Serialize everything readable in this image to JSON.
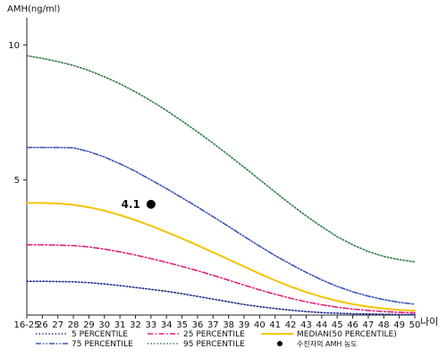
{
  "chart_data": {
    "type": "line",
    "ylabel": "AMH(ng/ml)",
    "xlabel": "나이",
    "categories": [
      "16-25",
      "26",
      "27",
      "28",
      "29",
      "30",
      "31",
      "32",
      "33",
      "34",
      "35",
      "36",
      "37",
      "38",
      "39",
      "40",
      "41",
      "42",
      "43",
      "44",
      "45",
      "46",
      "47",
      "48",
      "49",
      "50"
    ],
    "x": [
      25,
      26,
      27,
      28,
      29,
      30,
      31,
      32,
      33,
      34,
      35,
      36,
      37,
      38,
      39,
      40,
      41,
      42,
      43,
      44,
      45,
      46,
      47,
      48,
      49,
      50
    ],
    "xlim": [
      25,
      50
    ],
    "ylim": [
      0,
      11
    ],
    "yticks": [
      5,
      10
    ],
    "series": [
      {
        "name": "5 PERCENTILE",
        "color": "#1f2a8a",
        "dash": "dotted",
        "values": [
          1.25,
          1.25,
          1.24,
          1.23,
          1.2,
          1.15,
          1.09,
          1.02,
          0.95,
          0.88,
          0.79,
          0.69,
          0.59,
          0.49,
          0.39,
          0.31,
          0.24,
          0.18,
          0.13,
          0.09,
          0.07,
          0.05,
          0.04,
          0.03,
          0.02,
          0.02
        ]
      },
      {
        "name": "25 PERCENTILE",
        "color": "#e0207a",
        "dash": "dashdot",
        "values": [
          2.6,
          2.6,
          2.59,
          2.57,
          2.52,
          2.44,
          2.34,
          2.22,
          2.09,
          1.95,
          1.8,
          1.64,
          1.47,
          1.29,
          1.11,
          0.93,
          0.77,
          0.62,
          0.49,
          0.38,
          0.29,
          0.22,
          0.17,
          0.13,
          0.1,
          0.08
        ]
      },
      {
        "name": "MEDIAN(50 PERCENTILE)",
        "color": "#f5c400",
        "dash": "solid",
        "values": [
          4.15,
          4.15,
          4.13,
          4.08,
          3.99,
          3.86,
          3.7,
          3.51,
          3.3,
          3.07,
          2.83,
          2.58,
          2.32,
          2.06,
          1.79,
          1.53,
          1.28,
          1.05,
          0.85,
          0.67,
          0.52,
          0.4,
          0.31,
          0.24,
          0.19,
          0.16
        ]
      },
      {
        "name": "75 PERCENTILE",
        "color": "#3c56b8",
        "dash": "dashdotdot",
        "values": [
          6.2,
          6.2,
          6.2,
          6.19,
          6.05,
          5.85,
          5.6,
          5.32,
          5.0,
          4.68,
          4.34,
          4.0,
          3.64,
          3.28,
          2.91,
          2.55,
          2.2,
          1.88,
          1.58,
          1.3,
          1.06,
          0.86,
          0.7,
          0.57,
          0.47,
          0.4
        ]
      },
      {
        "name": "95 PERCENTILE",
        "color": "#2f7a45",
        "dash": "dotted",
        "values": [
          9.6,
          9.5,
          9.38,
          9.24,
          9.05,
          8.82,
          8.56,
          8.26,
          7.93,
          7.57,
          7.18,
          6.78,
          6.36,
          5.92,
          5.47,
          5.01,
          4.55,
          4.1,
          3.67,
          3.27,
          2.9,
          2.6,
          2.35,
          2.17,
          2.05,
          1.97
        ]
      }
    ],
    "point": {
      "name": "수진자의 AMH 농도",
      "x": 33,
      "y": 4.1,
      "label": "4.1",
      "color": "#000000"
    },
    "legend": {
      "placement": "bottom",
      "items": [
        {
          "name": "5 PERCENTILE",
          "color": "#1f2a8a",
          "dash": "dotted"
        },
        {
          "name": "25 PERCENTILE",
          "color": "#e0207a",
          "dash": "dashdot"
        },
        {
          "name": "MEDIAN(50 PERCENTILE)",
          "color": "#f5c400",
          "dash": "solid"
        },
        {
          "name": "75 PERCENTILE",
          "color": "#3c56b8",
          "dash": "dashdotdot"
        },
        {
          "name": "95 PERCENTILE",
          "color": "#2f7a45",
          "dash": "dotted"
        },
        {
          "name": "수진자의 AMH 농도",
          "color": "#000000",
          "dash": "marker"
        }
      ]
    }
  }
}
